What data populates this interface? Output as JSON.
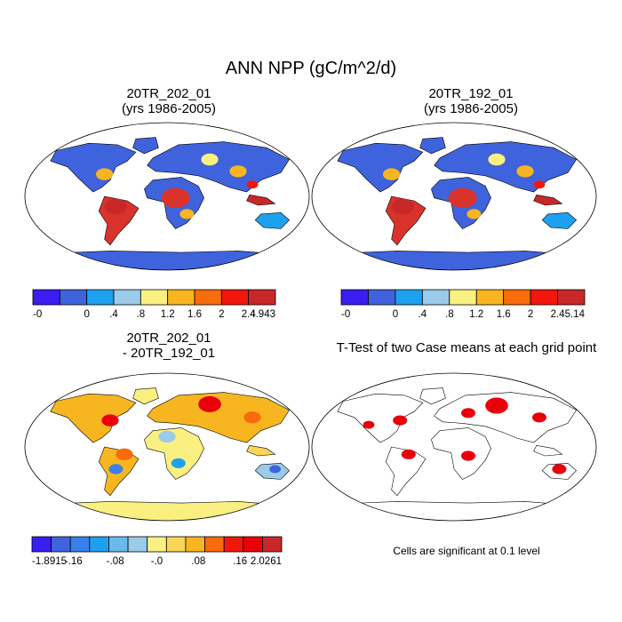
{
  "title": "ANN NPP (gC/m^2/d)",
  "panels": [
    {
      "line1": "20TR_202_01",
      "line2": "(yrs 1986-2005)"
    },
    {
      "line1": "20TR_192_01",
      "line2": "(yrs 1986-2005)"
    },
    {
      "line1": "20TR_202_01",
      "line2": "- 20TR_192_01"
    },
    {
      "line1": "T-Test of two Case means at each grid point",
      "line2": ""
    }
  ],
  "significance_note": "Cells are significant at 0.1 level",
  "colorbars": [
    {
      "labels": [
        "-0",
        "0",
        ".4",
        ".8",
        "1.2",
        "1.6",
        "2",
        "2.4",
        "4.943"
      ],
      "colors": [
        "#3a1df0",
        "#3f63dc",
        "#1ea0f0",
        "#9acbe8",
        "#faf082",
        "#f7b520",
        "#f86c0b",
        "#f2170c",
        "#c92829"
      ]
    },
    {
      "labels": [
        "-0",
        "0",
        ".4",
        ".8",
        "1.2",
        "1.6",
        "2",
        "2.4",
        "5.14"
      ],
      "colors": [
        "#3a1df0",
        "#3f63dc",
        "#1ea0f0",
        "#9acbe8",
        "#faf082",
        "#f7b520",
        "#f86c0b",
        "#f2170c",
        "#c92829"
      ]
    },
    {
      "labels": [
        "-1.8915",
        "-.16",
        "-.08",
        "-.0",
        ".08",
        ".16",
        "2.0261"
      ],
      "colors": [
        "#3a1df0",
        "#3f63dc",
        "#3a80ec",
        "#1ea0f0",
        "#69b9ee",
        "#9acbe8",
        "#faf082",
        "#f9d658",
        "#f7b520",
        "#f86c0b",
        "#f2170c",
        "#e8000b",
        "#c92829"
      ]
    }
  ],
  "chart_data": [
    {
      "type": "heatmap",
      "title": "20TR_202_01 (yrs 1986-2005)",
      "projection": "Robinson",
      "variable": "ANN NPP",
      "units": "gC/m^2/d",
      "range": [
        0,
        4.943
      ],
      "levels": [
        0,
        0.4,
        0.8,
        1.2,
        1.6,
        2,
        2.4
      ]
    },
    {
      "type": "heatmap",
      "title": "20TR_192_01 (yrs 1986-2005)",
      "projection": "Robinson",
      "variable": "ANN NPP",
      "units": "gC/m^2/d",
      "range": [
        0,
        5.14
      ],
      "levels": [
        0,
        0.4,
        0.8,
        1.2,
        1.6,
        2,
        2.4
      ]
    },
    {
      "type": "heatmap",
      "title": "20TR_202_01 - 20TR_192_01",
      "projection": "Robinson",
      "range": [
        -1.8915,
        2.0261
      ],
      "levels": [
        -0.16,
        -0.08,
        -0.0,
        0.08,
        0.16
      ]
    },
    {
      "type": "heatmap",
      "title": "T-Test of two Case means at each grid point",
      "projection": "Robinson",
      "note": "Cells are significant at 0.1 level",
      "significance_level": 0.1
    }
  ]
}
